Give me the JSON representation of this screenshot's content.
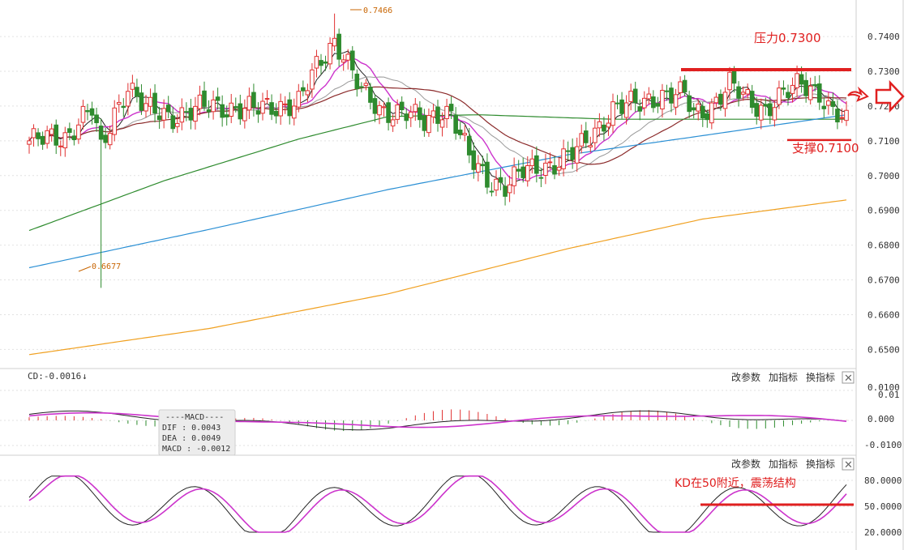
{
  "chart_data": [
    {
      "type": "candlestick",
      "panel": "price",
      "y_ticks": [
        "0.7400",
        "0.7300",
        "0.7200",
        "0.7100",
        "0.7000",
        "0.6900",
        "0.6800",
        "0.6700",
        "0.6600",
        "0.6500"
      ],
      "ylim": [
        0.6445,
        0.7505
      ],
      "high_label": "0.7466",
      "low_label": "0.6677",
      "resistance": {
        "label": "压力0.7300",
        "value": 0.73
      },
      "support": {
        "label": "支撑0.7100",
        "value": 0.71
      },
      "colors": {
        "up": "#e03030",
        "down": "#2e8b2e"
      }
    },
    {
      "type": "line",
      "panel": "macd",
      "header": "CD:-0.0016",
      "y_ticks": [
        "0.0100",
        "0.01",
        "0.000",
        "-0.0100"
      ],
      "box_title": "----MACD----",
      "box_lines": [
        "DIF : 0.0043",
        "DEA : 0.0049",
        "MACD : -0.0012"
      ],
      "toolbar": [
        "改参数",
        "加指标",
        "换指标"
      ]
    },
    {
      "type": "line",
      "panel": "kd",
      "y_ticks": [
        "80.0000",
        "50.0000",
        "20.0000"
      ],
      "annotation": "KD在50附近，震荡结构",
      "annotation_level": 50,
      "toolbar": [
        "改参数",
        "加指标",
        "换指标"
      ]
    }
  ]
}
